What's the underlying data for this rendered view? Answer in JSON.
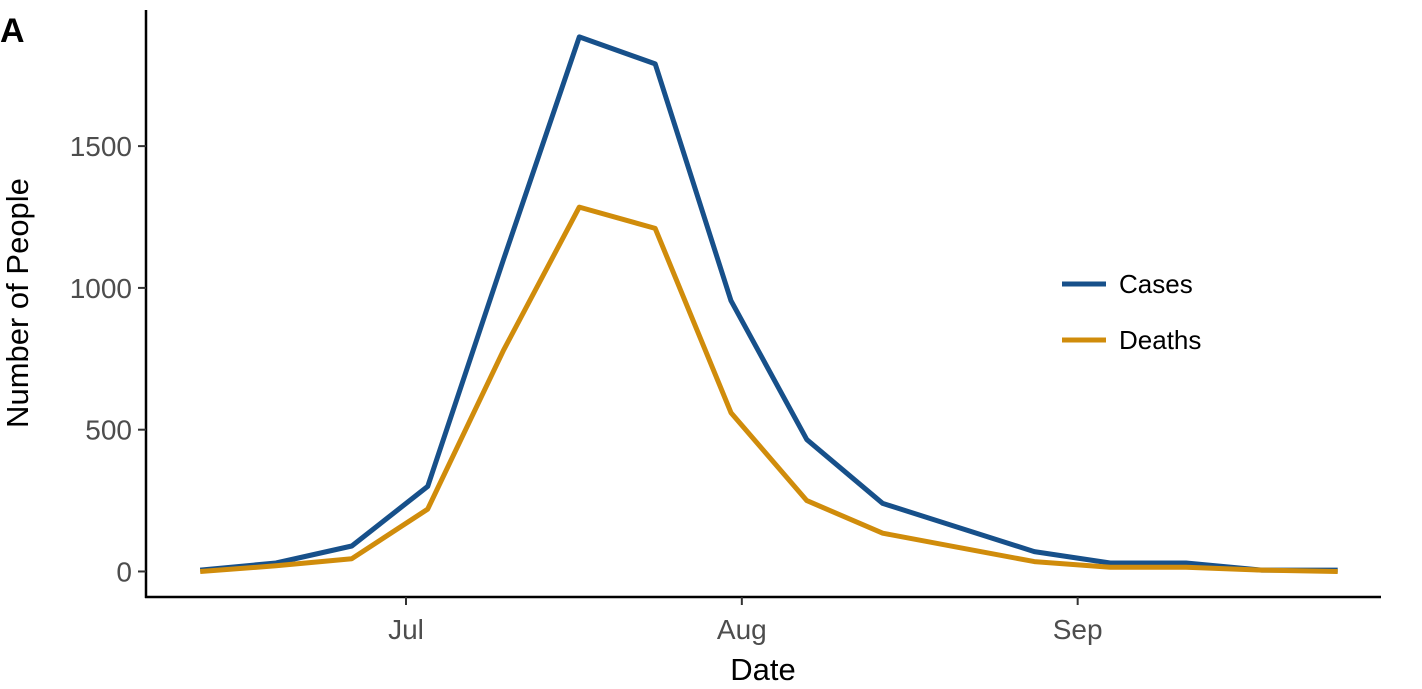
{
  "panel_label": "A",
  "chart_data": {
    "type": "line",
    "xlabel": "Date",
    "ylabel": "Number of People",
    "x_ticks": [
      {
        "label": "Jul",
        "date": "2015-07-01"
      },
      {
        "label": "Aug",
        "date": "2015-08-01"
      },
      {
        "label": "Sep",
        "date": "2015-09-01"
      }
    ],
    "y_ticks": [
      0,
      500,
      1000,
      1500
    ],
    "xlim": [
      "2015-06-07",
      "2015-09-29"
    ],
    "ylim": [
      -90,
      1980
    ],
    "legend_position": "right",
    "grid": false,
    "x": [
      "2015-06-12",
      "2015-06-19",
      "2015-06-26",
      "2015-07-03",
      "2015-07-10",
      "2015-07-17",
      "2015-07-24",
      "2015-07-31",
      "2015-08-07",
      "2015-08-14",
      "2015-08-21",
      "2015-08-28",
      "2015-09-04",
      "2015-09-11",
      "2015-09-18",
      "2015-09-25"
    ],
    "series": [
      {
        "name": "Cases",
        "color": "#17508a",
        "values": [
          5,
          30,
          90,
          300,
          1100,
          1885,
          1790,
          955,
          465,
          240,
          155,
          70,
          30,
          30,
          5,
          5
        ]
      },
      {
        "name": "Deaths",
        "color": "#d08c0b",
        "values": [
          0,
          20,
          45,
          220,
          780,
          1285,
          1210,
          560,
          250,
          135,
          85,
          35,
          15,
          15,
          5,
          0
        ]
      }
    ]
  }
}
